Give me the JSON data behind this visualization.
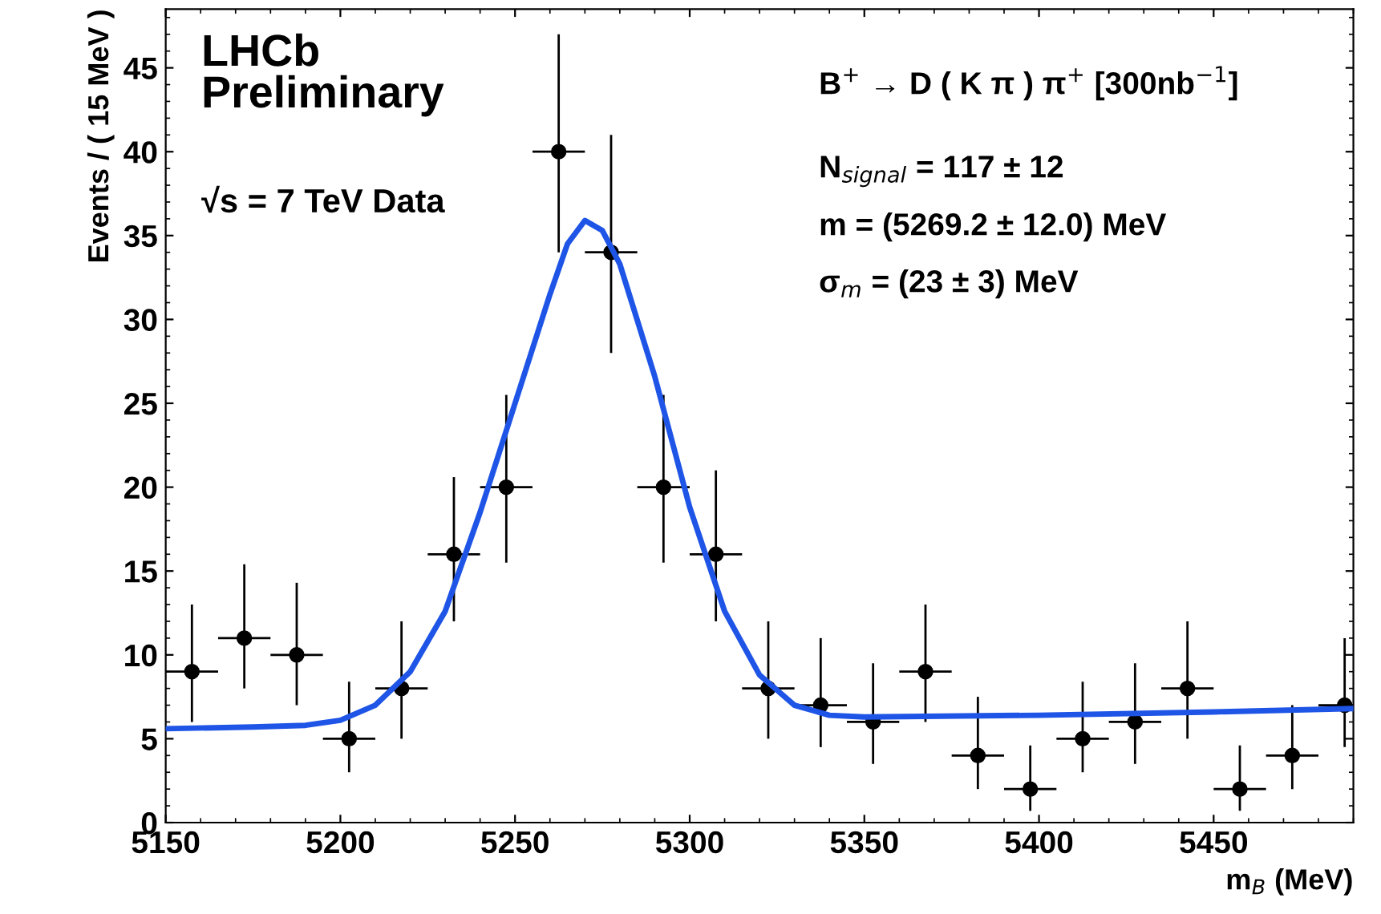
{
  "chart_data": {
    "type": "scatter",
    "xlabel": "m$_{B}$ (MeV)",
    "ylabel": "Events / ( 15 MeV )",
    "annotations": [
      "LHCb\nPreliminary",
      "√s = 7 TeV Data",
      "B$^{+}$ → D ( K π ) π$^{+}$ [300nb$^{−1}$]",
      "N$_{signal}$ = 117 ± 12",
      "m = (5269.2 ± 12.0) MeV",
      "σ$_{m}$ = (23 ± 3) MeV"
    ],
    "xlim": [
      5150,
      5490
    ],
    "xticks": [
      5150,
      5200,
      5250,
      5300,
      5350,
      5400,
      5450
    ],
    "ylim": [
      0,
      48.5
    ],
    "yticks": [
      0,
      5,
      10,
      15,
      20,
      25,
      30,
      35,
      40,
      45
    ],
    "grid": false,
    "legend": false,
    "series": [
      {
        "marker": "circle",
        "color": "#000000",
        "x": [
          5157.5,
          5172.5,
          5187.5,
          5202.5,
          5217.5,
          5232.5,
          5247.5,
          5262.5,
          5277.5,
          5292.5,
          5307.5,
          5322.5,
          5337.5,
          5352.5,
          5367.5,
          5382.5,
          5397.5,
          5412.5,
          5427.5,
          5442.5,
          5457.5,
          5472.5,
          5487.5
        ],
        "values": [
          9,
          11,
          10,
          5,
          8,
          16,
          20,
          40,
          34,
          20,
          16,
          8,
          7,
          6,
          9,
          4,
          2,
          5,
          6,
          8,
          2,
          4,
          7
        ],
        "errors": [
          [
            6,
            13
          ],
          [
            8,
            15.4
          ],
          [
            7,
            14.3
          ],
          [
            3,
            8.4
          ],
          [
            5,
            12
          ],
          [
            12,
            20.6
          ],
          [
            15.5,
            25.5
          ],
          [
            34,
            47
          ],
          [
            28,
            41
          ],
          [
            15.5,
            25.5
          ],
          [
            12,
            21
          ],
          [
            5,
            12
          ],
          [
            4.5,
            11
          ],
          [
            3.5,
            9.5
          ],
          [
            6,
            13
          ],
          [
            2,
            7.5
          ],
          [
            0.7,
            4.6
          ],
          [
            3,
            8.4
          ],
          [
            3.5,
            9.5
          ],
          [
            5,
            12
          ],
          [
            0.7,
            4.6
          ],
          [
            2,
            7
          ],
          [
            4.5,
            11
          ]
        ],
        "xerrors": [
          7.5,
          7.5,
          7.5,
          7.5,
          7.5,
          7.5,
          7.5,
          7.5,
          7.5,
          7.5,
          7.5,
          7.5,
          7.5,
          7.5,
          7.5,
          7.5,
          7.5,
          7.5,
          7.5,
          7.5,
          7.5,
          7.5,
          7.5
        ]
      },
      {
        "type": "line",
        "color": "#1f55e6",
        "line_style": "solid",
        "x": [
          5150,
          5175,
          5190,
          5200,
          5210,
          5220,
          5230,
          5240,
          5250,
          5260,
          5265,
          5270,
          5275,
          5280,
          5290,
          5300,
          5310,
          5320,
          5330,
          5340,
          5350,
          5400,
          5450,
          5490
        ],
        "values": [
          5.6,
          5.7,
          5.8,
          6.1,
          7.0,
          9.0,
          12.6,
          18.5,
          25,
          31.5,
          34.5,
          35.9,
          35.3,
          33.3,
          26.6,
          18.8,
          12.6,
          8.8,
          7.0,
          6.4,
          6.3,
          6.4,
          6.6,
          6.8
        ]
      }
    ]
  }
}
